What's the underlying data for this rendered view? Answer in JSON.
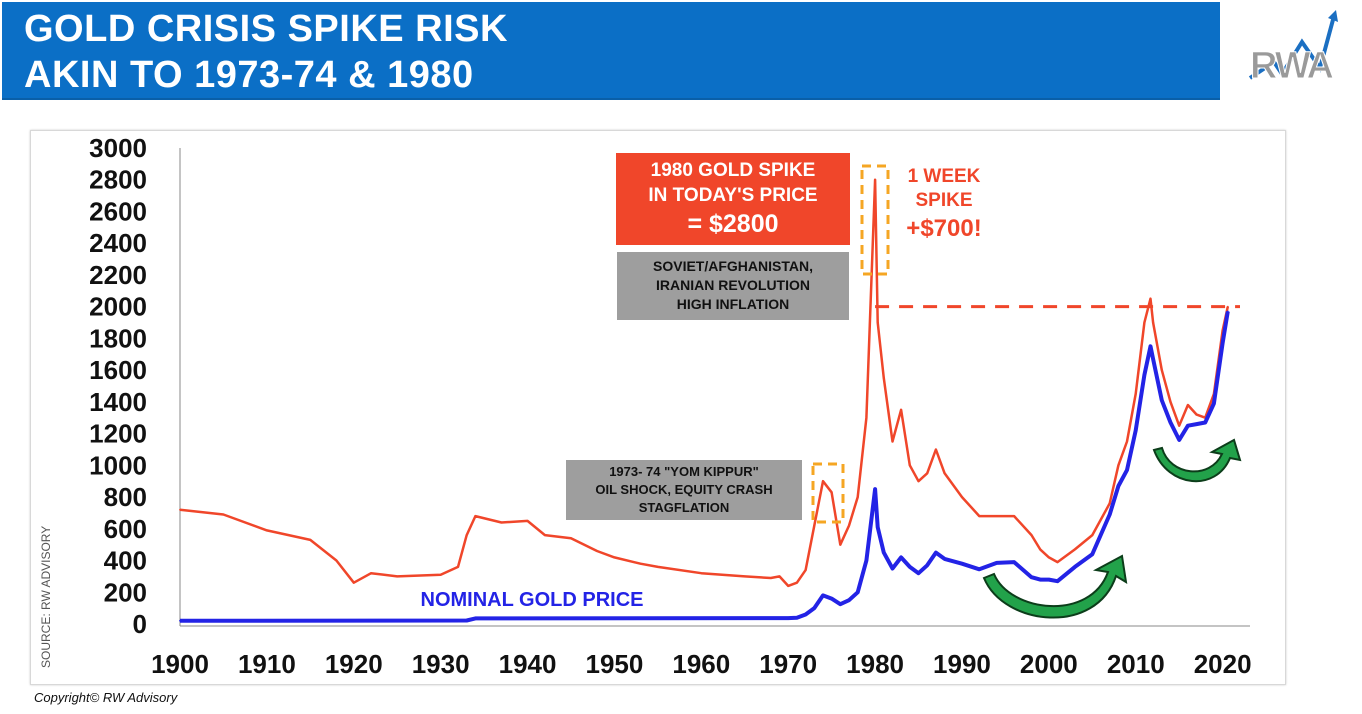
{
  "header": {
    "title_line1": "GOLD CRISIS SPIKE RISK",
    "title_line2": "AKIN TO 1973-74 & 1980",
    "logo_text": "RWA",
    "colors": {
      "banner": "#0b6fc6",
      "title_text": "#ffffff"
    }
  },
  "footer": {
    "copyright": "Copyright© RW Advisory"
  },
  "chart_data": {
    "type": "line",
    "title": "",
    "xlabel": "",
    "ylabel": "",
    "xlim": [
      1900,
      2022
    ],
    "ylim": [
      0,
      3000
    ],
    "grid": false,
    "x_ticks": [
      "1900",
      "1910",
      "1920",
      "1930",
      "1940",
      "1950",
      "1960",
      "1970",
      "1980",
      "1990",
      "2000",
      "2010",
      "2020"
    ],
    "y_ticks": [
      "0",
      "200",
      "400",
      "600",
      "800",
      "1000",
      "1200",
      "1400",
      "1600",
      "1800",
      "2000",
      "2200",
      "2400",
      "2600",
      "2800",
      "3000"
    ],
    "source_label": "SOURCE: RW ADVISORY",
    "series": [
      {
        "name": "",
        "color": "#f0462a",
        "points": [
          [
            1900,
            720
          ],
          [
            1905,
            690
          ],
          [
            1910,
            590
          ],
          [
            1915,
            530
          ],
          [
            1918,
            400
          ],
          [
            1920,
            260
          ],
          [
            1922,
            320
          ],
          [
            1925,
            300
          ],
          [
            1930,
            310
          ],
          [
            1932,
            360
          ],
          [
            1933,
            560
          ],
          [
            1934,
            680
          ],
          [
            1937,
            640
          ],
          [
            1940,
            650
          ],
          [
            1942,
            560
          ],
          [
            1945,
            540
          ],
          [
            1948,
            460
          ],
          [
            1950,
            420
          ],
          [
            1953,
            380
          ],
          [
            1955,
            360
          ],
          [
            1960,
            320
          ],
          [
            1965,
            300
          ],
          [
            1968,
            290
          ],
          [
            1969,
            300
          ],
          [
            1970,
            240
          ],
          [
            1971,
            260
          ],
          [
            1972,
            340
          ],
          [
            1973,
            620
          ],
          [
            1974,
            900
          ],
          [
            1975,
            830
          ],
          [
            1976,
            500
          ],
          [
            1977,
            620
          ],
          [
            1978,
            800
          ],
          [
            1979,
            1300
          ],
          [
            1980,
            2800
          ],
          [
            1980.3,
            1900
          ],
          [
            1981,
            1550
          ],
          [
            1982,
            1150
          ],
          [
            1983,
            1350
          ],
          [
            1984,
            1000
          ],
          [
            1985,
            900
          ],
          [
            1986,
            950
          ],
          [
            1987,
            1100
          ],
          [
            1988,
            950
          ],
          [
            1990,
            800
          ],
          [
            1992,
            680
          ],
          [
            1994,
            680
          ],
          [
            1996,
            680
          ],
          [
            1998,
            560
          ],
          [
            1999,
            470
          ],
          [
            2000,
            420
          ],
          [
            2001,
            390
          ],
          [
            2003,
            470
          ],
          [
            2005,
            560
          ],
          [
            2007,
            760
          ],
          [
            2008,
            1000
          ],
          [
            2009,
            1150
          ],
          [
            2010,
            1450
          ],
          [
            2011,
            1900
          ],
          [
            2011.7,
            2050
          ],
          [
            2012,
            1900
          ],
          [
            2013,
            1600
          ],
          [
            2014,
            1400
          ],
          [
            2015,
            1250
          ],
          [
            2016,
            1380
          ],
          [
            2017,
            1320
          ],
          [
            2018,
            1300
          ],
          [
            2019,
            1450
          ],
          [
            2020,
            1850
          ],
          [
            2020.6,
            2000
          ]
        ]
      },
      {
        "name": "NOMINAL GOLD PRICE",
        "color": "#2323e6",
        "points": [
          [
            1900,
            20
          ],
          [
            1933,
            22
          ],
          [
            1934,
            35
          ],
          [
            1970,
            37
          ],
          [
            1971,
            40
          ],
          [
            1972,
            60
          ],
          [
            1973,
            100
          ],
          [
            1974,
            180
          ],
          [
            1975,
            160
          ],
          [
            1976,
            125
          ],
          [
            1977,
            150
          ],
          [
            1978,
            200
          ],
          [
            1979,
            400
          ],
          [
            1980,
            850
          ],
          [
            1980.3,
            610
          ],
          [
            1981,
            450
          ],
          [
            1982,
            350
          ],
          [
            1983,
            420
          ],
          [
            1984,
            360
          ],
          [
            1985,
            320
          ],
          [
            1986,
            370
          ],
          [
            1987,
            450
          ],
          [
            1988,
            410
          ],
          [
            1990,
            380
          ],
          [
            1992,
            345
          ],
          [
            1994,
            385
          ],
          [
            1996,
            390
          ],
          [
            1998,
            295
          ],
          [
            1999,
            280
          ],
          [
            2000,
            280
          ],
          [
            2001,
            270
          ],
          [
            2003,
            360
          ],
          [
            2005,
            440
          ],
          [
            2007,
            690
          ],
          [
            2008,
            870
          ],
          [
            2009,
            970
          ],
          [
            2010,
            1220
          ],
          [
            2011,
            1570
          ],
          [
            2011.7,
            1750
          ],
          [
            2012,
            1670
          ],
          [
            2013,
            1410
          ],
          [
            2014,
            1270
          ],
          [
            2015,
            1160
          ],
          [
            2016,
            1250
          ],
          [
            2017,
            1260
          ],
          [
            2018,
            1270
          ],
          [
            2019,
            1390
          ],
          [
            2020,
            1770
          ],
          [
            2020.6,
            1970
          ]
        ]
      }
    ],
    "reference_line": {
      "value": 2000,
      "from_x": 1980,
      "to_x": 2022,
      "style": "dashed",
      "color": "#f0462a"
    },
    "annotations": {
      "spike_box": {
        "lines": [
          "1980 GOLD SPIKE",
          "IN TODAY'S PRICE",
          "= $2800"
        ],
        "bg": "#f0462a",
        "color": "#ffffff"
      },
      "week_spike": {
        "lines": [
          "1 WEEK",
          "SPIKE",
          "+$700!"
        ],
        "color": "#f0462a"
      },
      "box_1980": {
        "lines": [
          "SOVIET/AFGHANISTAN,",
          "IRANIAN REVOLUTION",
          "HIGH INFLATION"
        ],
        "bg": "#9e9e9e"
      },
      "box_1973": {
        "lines": [
          "1973- 74 \"YOM KIPPUR\"",
          "OIL SHOCK, EQUITY CRASH",
          "STAGFLATION"
        ],
        "bg": "#9e9e9e"
      },
      "nominal_label": {
        "text": "NOMINAL GOLD PRICE",
        "color": "#2323e6"
      },
      "arrow_color": "#22a24a"
    }
  }
}
